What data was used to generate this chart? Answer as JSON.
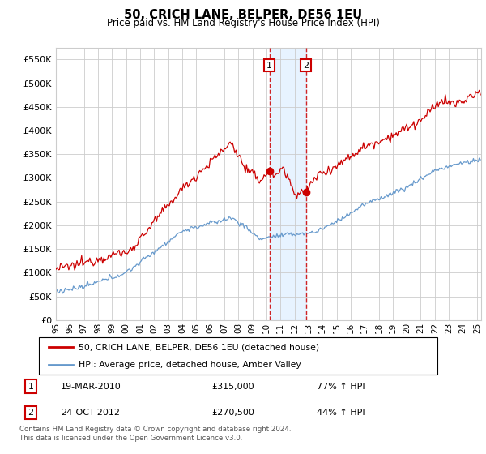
{
  "title": "50, CRICH LANE, BELPER, DE56 1EU",
  "subtitle": "Price paid vs. HM Land Registry's House Price Index (HPI)",
  "ylabel_ticks": [
    0,
    50000,
    100000,
    150000,
    200000,
    250000,
    300000,
    350000,
    400000,
    450000,
    500000,
    550000
  ],
  "ylim": [
    0,
    575000
  ],
  "xlim_start": 1995.0,
  "xlim_end": 2025.3,
  "x_tick_years": [
    1995,
    1996,
    1997,
    1998,
    1999,
    2000,
    2001,
    2002,
    2003,
    2004,
    2005,
    2006,
    2007,
    2008,
    2009,
    2010,
    2011,
    2012,
    2013,
    2014,
    2015,
    2016,
    2017,
    2018,
    2019,
    2020,
    2021,
    2022,
    2023,
    2024,
    2025
  ],
  "vline1_x": 2010.22,
  "vline2_x": 2012.81,
  "transaction1": {
    "date": "19-MAR-2010",
    "price": "£315,000",
    "hpi": "77% ↑ HPI"
  },
  "transaction2": {
    "date": "24-OCT-2012",
    "price": "£270,500",
    "hpi": "44% ↑ HPI"
  },
  "legend_line1": "50, CRICH LANE, BELPER, DE56 1EU (detached house)",
  "legend_line2": "HPI: Average price, detached house, Amber Valley",
  "footer": "Contains HM Land Registry data © Crown copyright and database right 2024.\nThis data is licensed under the Open Government Licence v3.0.",
  "red_color": "#cc0000",
  "blue_color": "#6699cc",
  "background_color": "#ffffff",
  "grid_color": "#cccccc",
  "shading_color": "#ddeeff",
  "sale1_y": 315000,
  "sale2_y": 270500
}
